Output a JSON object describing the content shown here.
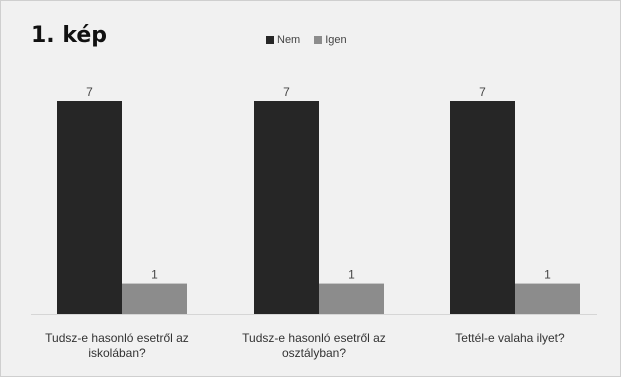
{
  "figure": {
    "title": "1. kép"
  },
  "colors": {
    "nem": "#262626",
    "igen": "#8c8c8c",
    "background": "#f1f1f1"
  },
  "chart_data": {
    "type": "bar",
    "categories": [
      "Tudsz-e hasonló esetről az iskolában?",
      "Tudsz-e hasonló esetről az osztályban?",
      "Tettél-e valaha ilyet?"
    ],
    "series": [
      {
        "name": "Nem",
        "values": [
          7,
          7,
          7
        ]
      },
      {
        "name": "Igen",
        "values": [
          1,
          1,
          1
        ]
      }
    ],
    "title": "1. kép",
    "xlabel": "",
    "ylabel": "",
    "ylim": [
      0,
      7
    ],
    "grid": false,
    "legend": "top-center",
    "data_labels": true
  }
}
